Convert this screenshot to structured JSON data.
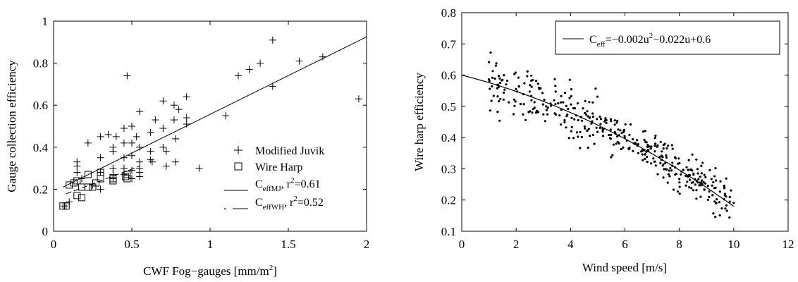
{
  "chart_data": [
    {
      "type": "scatter",
      "xlabel": "CWF Fog−gauges [mm/m",
      "xlabel_sup": "2",
      "xlabel_end": "]",
      "ylabel": "Gauge collection efficiency",
      "xlim": [
        0,
        2
      ],
      "ylim": [
        0,
        1
      ],
      "xticks": [
        "0",
        "0.5",
        "1",
        "1.5",
        "2"
      ],
      "yticks": [
        "0",
        "0.2",
        "0.4",
        "0.6",
        "0.8",
        "1"
      ],
      "legend": {
        "placement": "bottom-right",
        "mj_label": "Modified Juvik",
        "wh_label": "Wire Harp",
        "fit_mj_base": "C",
        "fit_mj_sub": "effMJ",
        "fit_mj_r": ", r",
        "fit_mj_sup": "2",
        "fit_mj_val": "=0.61",
        "fit_wh_base": "C",
        "fit_wh_sub": "effWH",
        "fit_wh_r": ", r",
        "fit_wh_sup": "2",
        "fit_wh_val": "=0.52"
      },
      "series": [
        {
          "marker": "plus",
          "points": [
            [
              0.07,
              0.12
            ],
            [
              0.1,
              0.14
            ],
            [
              0.15,
              0.31
            ],
            [
              0.15,
              0.33
            ],
            [
              0.15,
              0.28
            ],
            [
              0.18,
              0.25
            ],
            [
              0.22,
              0.42
            ],
            [
              0.25,
              0.22
            ],
            [
              0.3,
              0.45
            ],
            [
              0.3,
              0.35
            ],
            [
              0.3,
              0.28
            ],
            [
              0.3,
              0.2
            ],
            [
              0.35,
              0.46
            ],
            [
              0.38,
              0.4
            ],
            [
              0.38,
              0.38
            ],
            [
              0.38,
              0.3
            ],
            [
              0.38,
              0.27
            ],
            [
              0.38,
              0.25
            ],
            [
              0.4,
              0.45
            ],
            [
              0.45,
              0.49
            ],
            [
              0.45,
              0.42
            ],
            [
              0.45,
              0.35
            ],
            [
              0.45,
              0.3
            ],
            [
              0.45,
              0.27
            ],
            [
              0.47,
              0.74
            ],
            [
              0.5,
              0.5
            ],
            [
              0.5,
              0.42
            ],
            [
              0.5,
              0.36
            ],
            [
              0.5,
              0.29
            ],
            [
              0.5,
              0.25
            ],
            [
              0.53,
              0.45
            ],
            [
              0.55,
              0.57
            ],
            [
              0.55,
              0.4
            ],
            [
              0.55,
              0.33
            ],
            [
              0.55,
              0.3
            ],
            [
              0.55,
              0.28
            ],
            [
              0.55,
              0.26
            ],
            [
              0.62,
              0.47
            ],
            [
              0.62,
              0.38
            ],
            [
              0.62,
              0.34
            ],
            [
              0.63,
              0.33
            ],
            [
              0.65,
              0.53
            ],
            [
              0.7,
              0.62
            ],
            [
              0.7,
              0.49
            ],
            [
              0.7,
              0.4
            ],
            [
              0.72,
              0.38
            ],
            [
              0.72,
              0.31
            ],
            [
              0.77,
              0.6
            ],
            [
              0.77,
              0.53
            ],
            [
              0.78,
              0.44
            ],
            [
              0.78,
              0.33
            ],
            [
              0.8,
              0.58
            ],
            [
              0.85,
              0.64
            ],
            [
              0.85,
              0.54
            ],
            [
              0.85,
              0.51
            ],
            [
              0.93,
              0.3
            ],
            [
              1.1,
              0.55
            ],
            [
              1.18,
              0.74
            ],
            [
              1.25,
              0.77
            ],
            [
              1.32,
              0.8
            ],
            [
              1.4,
              0.91
            ],
            [
              1.4,
              0.69
            ],
            [
              1.57,
              0.81
            ],
            [
              1.72,
              0.83
            ],
            [
              1.95,
              0.63
            ]
          ]
        },
        {
          "marker": "square",
          "points": [
            [
              0.06,
              0.12
            ],
            [
              0.08,
              0.12
            ],
            [
              0.1,
              0.22
            ],
            [
              0.13,
              0.23
            ],
            [
              0.15,
              0.24
            ],
            [
              0.15,
              0.17
            ],
            [
              0.18,
              0.21
            ],
            [
              0.18,
              0.16
            ],
            [
              0.22,
              0.27
            ],
            [
              0.22,
              0.21
            ],
            [
              0.25,
              0.21
            ],
            [
              0.27,
              0.23
            ],
            [
              0.3,
              0.28
            ],
            [
              0.3,
              0.25
            ],
            [
              0.38,
              0.24
            ],
            [
              0.38,
              0.25
            ],
            [
              0.46,
              0.26
            ],
            [
              0.47,
              0.25
            ],
            [
              0.47,
              0.27
            ]
          ]
        }
      ],
      "fits": [
        {
          "name": "effMJ",
          "style": "solid",
          "x": [
            0.06,
            2.0
          ],
          "y": [
            0.21,
            0.925
          ]
        },
        {
          "name": "effWH",
          "style": "dash",
          "x": [
            0.08,
            0.55
          ],
          "y": [
            0.178,
            0.31
          ]
        }
      ]
    },
    {
      "type": "scatter",
      "xlabel": "Wind speed [m/s]",
      "ylabel": "Wire harp efficiency",
      "xlim": [
        0,
        12
      ],
      "ylim": [
        0.1,
        0.8
      ],
      "xticks": [
        "0",
        "2",
        "4",
        "6",
        "8",
        "10",
        "12"
      ],
      "yticks": [
        "0.1",
        "0.2",
        "0.3",
        "0.4",
        "0.5",
        "0.6",
        "0.7",
        "0.8"
      ],
      "legend": {
        "placement": "top-right",
        "label_base": "C",
        "label_sub": "eff",
        "label_p1": "=−0.002u",
        "label_sup": "2",
        "label_p2": "−0.022u+0.6"
      },
      "fit": {
        "a": -0.002,
        "b": -0.022,
        "c": 0.6,
        "x_range": [
          0,
          10
        ]
      },
      "scatter": {
        "seed": 7,
        "count": 400,
        "x_range": [
          1.0,
          10.0
        ],
        "noise": 0.05
      }
    }
  ]
}
